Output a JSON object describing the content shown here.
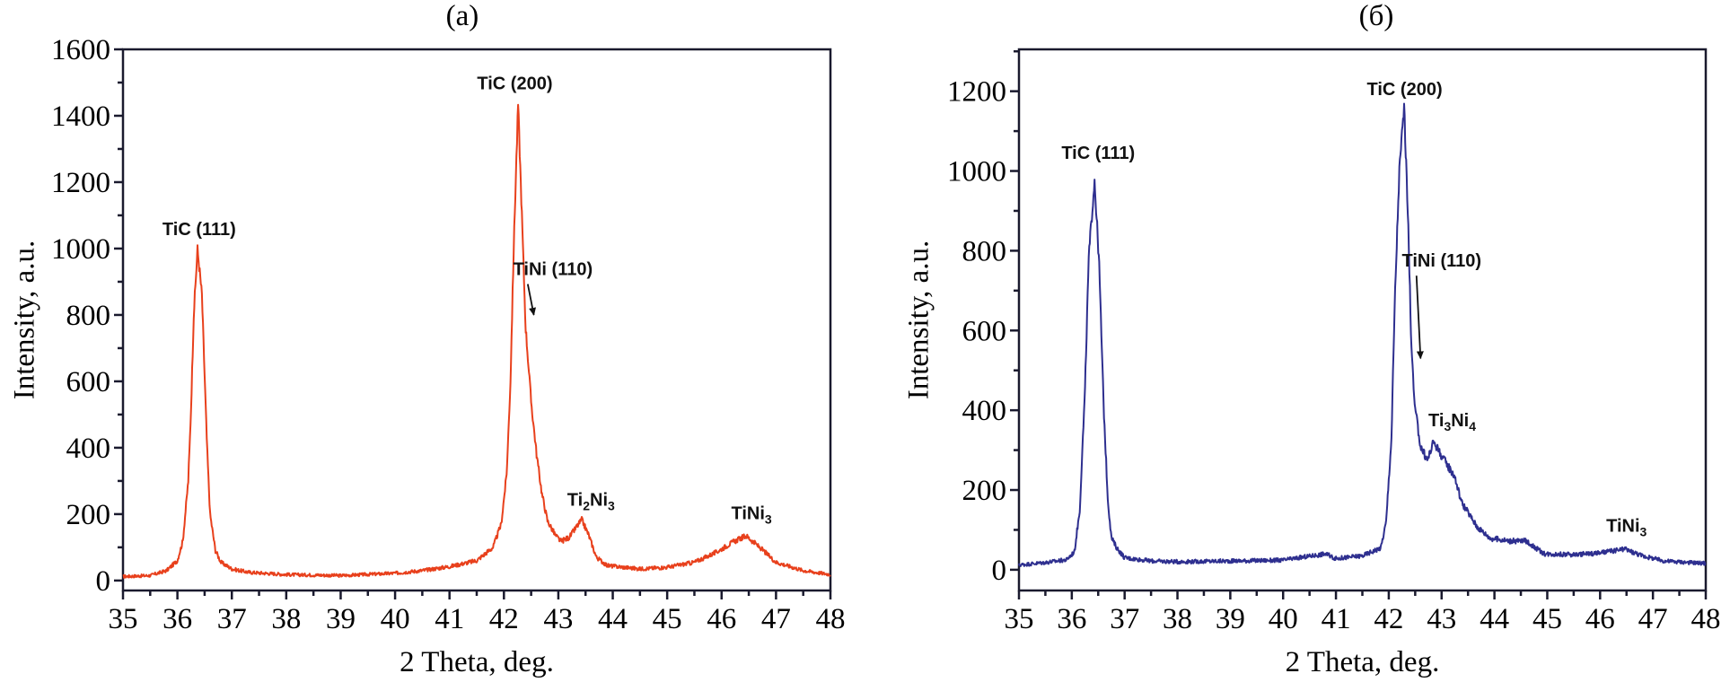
{
  "chart_data": [
    {
      "id": "a",
      "type": "line",
      "panel_label": "(a)",
      "title": "",
      "xlabel": "2 Theta, deg.",
      "ylabel": "Intensity, a.u.",
      "xlim": [
        35,
        48
      ],
      "ylim": [
        -30,
        1600
      ],
      "xticks": [
        35,
        36,
        37,
        38,
        39,
        40,
        41,
        42,
        43,
        44,
        45,
        46,
        47,
        48
      ],
      "yticks": [
        0,
        200,
        400,
        600,
        800,
        1000,
        1200,
        1400,
        1600
      ],
      "grid": false,
      "legend": "none",
      "series": [
        {
          "name": "XRD pattern (a)",
          "color": "#e8401c",
          "x": [
            35.0,
            35.5,
            35.8,
            36.0,
            36.1,
            36.2,
            36.25,
            36.3,
            36.37,
            36.45,
            36.5,
            36.55,
            36.6,
            36.7,
            36.8,
            37.0,
            37.3,
            38.0,
            39.0,
            40.0,
            40.5,
            41.0,
            41.5,
            41.8,
            41.95,
            42.05,
            42.12,
            42.18,
            42.26,
            42.32,
            42.4,
            42.5,
            42.6,
            42.7,
            42.8,
            42.95,
            43.05,
            43.2,
            43.35,
            43.43,
            43.55,
            43.7,
            43.9,
            44.5,
            45.0,
            45.5,
            45.9,
            46.2,
            46.45,
            46.7,
            47.0,
            47.5,
            48.0
          ],
          "y": [
            12,
            15,
            30,
            60,
            120,
            300,
            520,
            800,
            998,
            860,
            620,
            380,
            200,
            90,
            55,
            35,
            25,
            18,
            15,
            22,
            30,
            42,
            60,
            100,
            170,
            320,
            600,
            1000,
            1436,
            1150,
            760,
            540,
            380,
            260,
            180,
            135,
            118,
            130,
            165,
            183,
            140,
            70,
            45,
            35,
            40,
            55,
            85,
            115,
            135,
            100,
            55,
            30,
            18
          ]
        }
      ],
      "annotations": [
        {
          "text": "TiC (111)",
          "x": 36.4,
          "y": 1040
        },
        {
          "text": "TiC (200)",
          "x": 42.2,
          "y": 1480
        },
        {
          "text": "TiNi (110)",
          "x": 42.9,
          "y": 920,
          "arrow_to": [
            42.5,
            800
          ]
        },
        {
          "text": "Ti",
          "sub1": "2",
          "mid": "Ni",
          "sub2": "3",
          "x": 43.6,
          "y": 225
        },
        {
          "text": "TiNi",
          "sub2": "3",
          "x": 46.55,
          "y": 185
        }
      ]
    },
    {
      "id": "b",
      "type": "line",
      "panel_label": "(б)",
      "title": "",
      "xlabel": "2 Theta, deg.",
      "ylabel": "Intensity, a.u.",
      "xlim": [
        35,
        48
      ],
      "ylim": [
        -52,
        1305
      ],
      "xticks": [
        35,
        36,
        37,
        38,
        39,
        40,
        41,
        42,
        43,
        44,
        45,
        46,
        47,
        48
      ],
      "yticks": [
        0,
        200,
        400,
        600,
        800,
        1000,
        1200
      ],
      "grid": false,
      "legend": "none",
      "series": [
        {
          "name": "XRD pattern (б)",
          "color": "#2e2f8f",
          "x": [
            35.0,
            35.5,
            35.9,
            36.05,
            36.15,
            36.25,
            36.32,
            36.43,
            36.52,
            36.6,
            36.68,
            36.75,
            36.85,
            37.0,
            37.5,
            38.0,
            39.0,
            40.0,
            40.8,
            41.0,
            41.5,
            41.85,
            41.95,
            42.05,
            42.12,
            42.2,
            42.29,
            42.36,
            42.42,
            42.48,
            42.6,
            42.73,
            42.85,
            43.02,
            43.24,
            43.38,
            43.67,
            43.92,
            44.3,
            44.6,
            44.94,
            45.5,
            46.0,
            46.47,
            46.8,
            47.2,
            48.0
          ],
          "y": [
            12,
            18,
            25,
            45,
            150,
            450,
            780,
            979,
            760,
            420,
            180,
            80,
            55,
            30,
            22,
            20,
            22,
            24,
            40,
            28,
            35,
            55,
            120,
            330,
            700,
            1000,
            1163,
            900,
            600,
            423,
            310,
            274,
            322,
            281,
            236,
            169,
            108,
            79,
            72,
            72,
            40,
            38,
            42,
            52,
            35,
            22,
            16
          ]
        }
      ],
      "annotations": [
        {
          "text": "TiC (111)",
          "x": 36.5,
          "y": 1030
        },
        {
          "text": "TiC (200)",
          "x": 42.3,
          "y": 1190
        },
        {
          "text": "TiNi (110)",
          "x": 43.0,
          "y": 760,
          "arrow_to": [
            42.55,
            530
          ]
        },
        {
          "text": "Ti",
          "sub1": "3",
          "mid": "Ni",
          "sub2": "4",
          "x": 43.2,
          "y": 360
        },
        {
          "text": "TiNi",
          "sub2": "3",
          "x": 46.5,
          "y": 95
        }
      ]
    }
  ]
}
